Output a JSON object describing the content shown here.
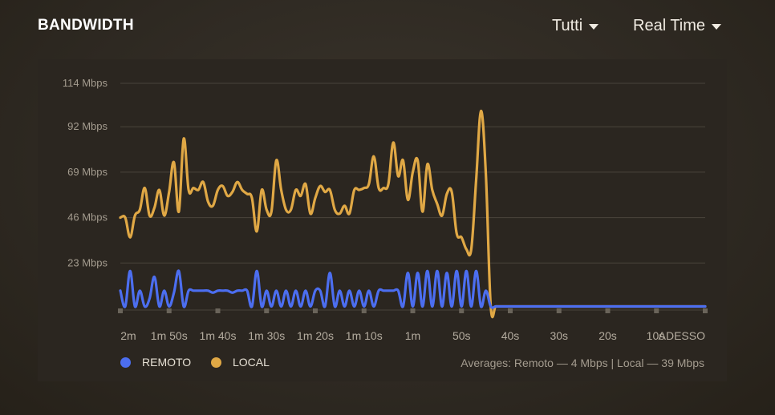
{
  "header": {
    "title": "BANDWIDTH",
    "filter_label": "Tutti",
    "range_label": "Real Time"
  },
  "legend": {
    "remote_label": "REMOTO",
    "local_label": "LOCAL",
    "averages": "Averages: Remoto — 4 Mbps | Local — 39 Mbps"
  },
  "colors": {
    "remote": "#4c6ef0",
    "local": "#e0a845",
    "grid": "#4a443b",
    "tick": "#6a645a"
  },
  "chart_data": {
    "type": "line",
    "y_ticks": [
      "114 Mbps",
      "92 Mbps",
      "69 Mbps",
      "46 Mbps",
      "23 Mbps"
    ],
    "y_tick_values": [
      114,
      92,
      69,
      46,
      23
    ],
    "x_ticks": [
      "2m",
      "1m 50s",
      "1m 40s",
      "1m 30s",
      "1m 20s",
      "1m 10s",
      "1m",
      "50s",
      "40s",
      "30s",
      "20s",
      "10s",
      "ADESSO"
    ],
    "x_tick_values": [
      120,
      110,
      100,
      90,
      80,
      70,
      60,
      50,
      40,
      30,
      20,
      10,
      0
    ],
    "ylim": [
      0,
      114
    ],
    "xlim": [
      120,
      0
    ],
    "series": [
      {
        "name": "LOCAL",
        "x": [
          120,
          119,
          118,
          117,
          116,
          115,
          114,
          113,
          112,
          111,
          110,
          109,
          108,
          107,
          106,
          105,
          104,
          103,
          102,
          101,
          100,
          99,
          98,
          97,
          96,
          95,
          94,
          93,
          92,
          91,
          90,
          89,
          88,
          87,
          86,
          85,
          84,
          83,
          82,
          81,
          80,
          79,
          78,
          77,
          76,
          75,
          74,
          73,
          72,
          71,
          70,
          69,
          68,
          67,
          66,
          65,
          64,
          63,
          62,
          61,
          60,
          59,
          58,
          57,
          56,
          55,
          54,
          53,
          52,
          51,
          50,
          49,
          48,
          47,
          46,
          45,
          44,
          43,
          42,
          41,
          40.5,
          40,
          39,
          38,
          36,
          34,
          32,
          30,
          28,
          26,
          24,
          22,
          20,
          18,
          16,
          14,
          12,
          10,
          8,
          6,
          4,
          2,
          0
        ],
        "values": [
          46,
          46,
          36,
          47,
          50,
          61,
          47,
          51,
          60,
          47,
          59,
          74,
          49,
          86,
          60,
          61,
          60,
          64,
          54,
          52,
          60,
          62,
          57,
          59,
          64,
          60,
          58,
          56,
          39,
          60,
          50,
          49,
          75,
          60,
          50,
          50,
          60,
          57,
          63,
          48,
          56,
          62,
          59,
          60,
          50,
          48,
          52,
          48,
          60,
          60,
          61,
          63,
          77,
          61,
          61,
          63,
          84,
          67,
          75,
          55,
          69,
          75,
          49,
          73,
          60,
          53,
          47,
          58,
          59,
          38,
          36,
          30,
          30,
          65,
          100,
          68,
          1,
          1,
          1,
          1,
          1,
          1,
          1,
          1,
          1,
          1,
          1,
          1,
          1,
          1,
          1,
          1,
          1,
          1,
          1,
          1,
          1,
          1,
          1,
          1,
          1,
          1,
          1
        ]
      },
      {
        "name": "REMOTO",
        "x": [
          120,
          119,
          118,
          117,
          116,
          115,
          114,
          113,
          112,
          111,
          110,
          109,
          108,
          107,
          106,
          105,
          104,
          103,
          102,
          101,
          100,
          99,
          98,
          97,
          96,
          95,
          94,
          93,
          92,
          91,
          90,
          89,
          88,
          87,
          86,
          85,
          84,
          83,
          82,
          81,
          80,
          79,
          78,
          77,
          76,
          75,
          74,
          73,
          72,
          71,
          70,
          69,
          68,
          67,
          66,
          65,
          64,
          63,
          62,
          61,
          60,
          59,
          58,
          57,
          56,
          55,
          54,
          53,
          52,
          51,
          50,
          49,
          48,
          47,
          46,
          45,
          44,
          43,
          42,
          41,
          40.5,
          40,
          39,
          38,
          36,
          34,
          32,
          30,
          28,
          26,
          24,
          22,
          20,
          18,
          16,
          14,
          12,
          10,
          8,
          6,
          4,
          2,
          0
        ],
        "values": [
          9,
          1,
          19,
          1,
          9,
          1,
          5,
          16,
          1,
          9,
          1,
          8,
          19,
          1,
          9,
          9,
          9,
          9,
          9,
          8,
          9,
          9,
          9,
          8,
          9,
          9,
          9,
          1,
          19,
          1,
          9,
          1,
          9,
          1,
          9,
          1,
          9,
          1,
          9,
          1,
          9,
          9,
          1,
          18,
          1,
          9,
          1,
          9,
          1,
          9,
          1,
          9,
          1,
          9,
          9,
          9,
          9,
          9,
          1,
          18,
          1,
          18,
          1,
          19,
          1,
          19,
          1,
          18,
          1,
          19,
          1,
          19,
          1,
          19,
          1,
          9,
          1,
          1,
          1,
          1,
          1,
          1,
          1,
          1,
          1,
          1,
          1,
          1,
          1,
          1,
          1,
          1,
          1,
          1,
          1,
          1,
          1,
          1,
          1,
          1,
          1,
          1,
          1
        ]
      }
    ]
  }
}
